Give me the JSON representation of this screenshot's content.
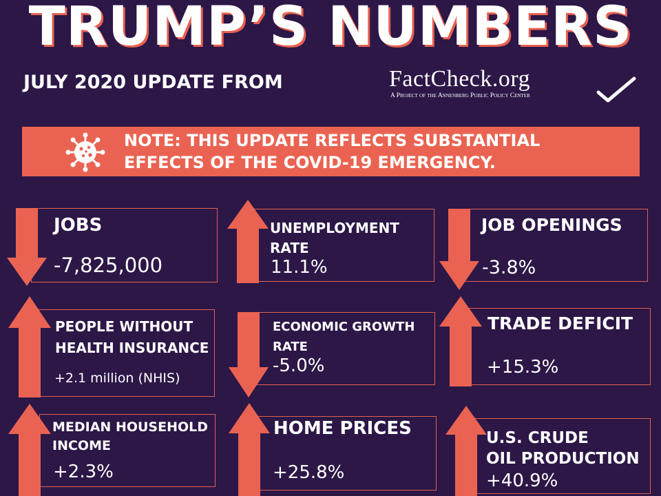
{
  "header": {
    "title": "TRUMP’S NUMBERS",
    "subtitle": "JULY 2020 UPDATE FROM",
    "logo_text": "FactCheck.org",
    "logo_tagline": "A Project of the Annenberg Public Policy Center"
  },
  "note": {
    "line1": "NOTE: THIS UPDATE REFLECTS SUBSTANTIAL",
    "line2": "EFFECTS OF THE COVID-19 EMERGENCY.",
    "icon": "virus-icon"
  },
  "colors": {
    "background": "#2c1747",
    "accent": "#ea6352",
    "text": "#ffffff"
  },
  "stats": [
    {
      "id": "jobs",
      "label_lines": [
        "JOBS"
      ],
      "value": "-7,825,000",
      "direction": "down"
    },
    {
      "id": "unemployment-rate",
      "label_lines": [
        "UNEMPLOYMENT",
        "RATE"
      ],
      "value": "11.1%",
      "direction": "up"
    },
    {
      "id": "job-openings",
      "label_lines": [
        "JOB OPENINGS"
      ],
      "value": "-3.8%",
      "direction": "down"
    },
    {
      "id": "people-without-health-insurance",
      "label_lines": [
        "PEOPLE WITHOUT",
        "HEALTH INSURANCE"
      ],
      "value": "+2.1 million (NHIS)",
      "direction": "up"
    },
    {
      "id": "economic-growth-rate",
      "label_lines": [
        "ECONOMIC GROWTH",
        "RATE"
      ],
      "value": "-5.0%",
      "direction": "down"
    },
    {
      "id": "trade-deficit",
      "label_lines": [
        "TRADE DEFICIT"
      ],
      "value": "+15.3%",
      "direction": "up"
    },
    {
      "id": "median-household-income",
      "label_lines": [
        "MEDIAN HOUSEHOLD",
        "INCOME"
      ],
      "value": "+2.3%",
      "direction": "up"
    },
    {
      "id": "home-prices",
      "label_lines": [
        "HOME PRICES"
      ],
      "value": "+25.8%",
      "direction": "up"
    },
    {
      "id": "us-crude-oil-production",
      "label_lines": [
        "U.S. CRUDE",
        "OIL PRODUCTION"
      ],
      "value": "+40.9%",
      "direction": "up"
    }
  ]
}
